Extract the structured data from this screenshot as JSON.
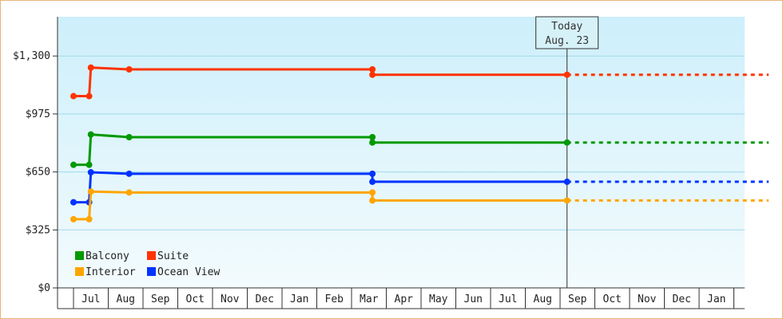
{
  "chart_data": {
    "type": "line",
    "step": true,
    "y_ticks": [
      "$0",
      "$325",
      "$650",
      "$975",
      "$1,300"
    ],
    "y_tick_values": [
      0,
      325,
      650,
      975,
      1300
    ],
    "ylim": [
      0,
      1520
    ],
    "months": [
      "Jul",
      "Aug",
      "Sep",
      "Oct",
      "Nov",
      "Dec",
      "Jan",
      "Feb",
      "Mar",
      "Apr",
      "May",
      "Jun",
      "Jul",
      "Aug",
      "Sep",
      "Oct",
      "Nov",
      "Dec",
      "Jan"
    ],
    "today": {
      "line1": "Today",
      "line2": "Aug. 23"
    },
    "series": [
      {
        "name": "Suite",
        "color": "#ff3300",
        "points": [
          [
            0.0,
            1075
          ],
          [
            0.45,
            1075
          ],
          [
            0.5,
            1235
          ],
          [
            1.6,
            1225
          ],
          [
            8.6,
            1225
          ],
          [
            8.6,
            1195
          ],
          [
            14.2,
            1195
          ]
        ],
        "projection_end": 20.0
      },
      {
        "name": "Balcony",
        "color": "#009900",
        "points": [
          [
            0.0,
            690
          ],
          [
            0.45,
            690
          ],
          [
            0.5,
            860
          ],
          [
            1.6,
            845
          ],
          [
            8.6,
            845
          ],
          [
            8.6,
            815
          ],
          [
            14.2,
            815
          ]
        ],
        "projection_end": 20.0
      },
      {
        "name": "Ocean View",
        "color": "#0033ff",
        "points": [
          [
            0.0,
            480
          ],
          [
            0.45,
            480
          ],
          [
            0.5,
            648
          ],
          [
            1.6,
            640
          ],
          [
            8.6,
            640
          ],
          [
            8.6,
            595
          ],
          [
            14.2,
            595
          ]
        ],
        "projection_end": 20.0
      },
      {
        "name": "Interior",
        "color": "#ffa500",
        "points": [
          [
            0.0,
            385
          ],
          [
            0.45,
            385
          ],
          [
            0.5,
            540
          ],
          [
            1.6,
            535
          ],
          [
            8.6,
            535
          ],
          [
            8.6,
            490
          ],
          [
            14.2,
            490
          ]
        ],
        "projection_end": 20.0
      }
    ],
    "legend": [
      {
        "name": "Balcony",
        "color": "#009900"
      },
      {
        "name": "Suite",
        "color": "#ff3300"
      },
      {
        "name": "Interior",
        "color": "#ffa500"
      },
      {
        "name": "Ocean View",
        "color": "#0033ff"
      }
    ]
  }
}
